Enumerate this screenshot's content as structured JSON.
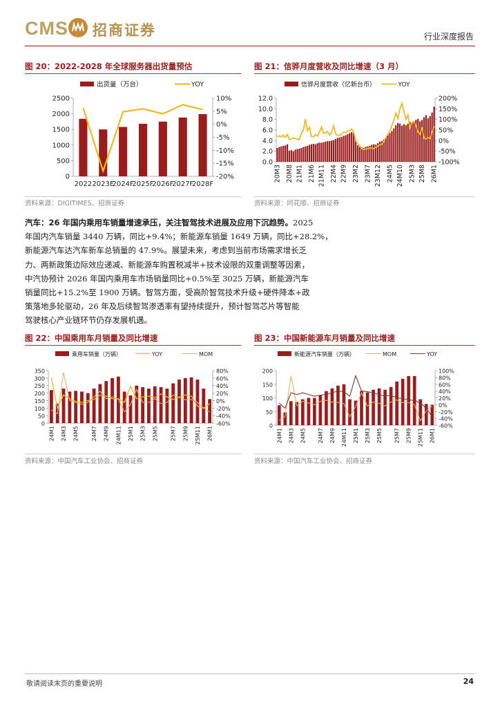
{
  "header": {
    "logo_text": "CMS",
    "logo_cn": "招商证券",
    "report_type": "行业深度报告"
  },
  "colors": {
    "bar": "#9b1c1c",
    "line_yellow": "#f2b81e",
    "line_mom": "#e8b06a",
    "line_yoy_dark": "#7a3a2a",
    "accent": "#9b1c1c"
  },
  "fig20": {
    "title": "图 20：2022-2028 年全球服务器出货量预估",
    "source": "资料来源：DIGITIMES、招商证券",
    "chart_data": {
      "type": "bar",
      "categories": [
        "2022",
        "2023E",
        "2024F",
        "2025F",
        "2026F",
        "2027F",
        "2028F"
      ],
      "series": [
        {
          "name": "出货量（万台）",
          "type": "bar",
          "axis": "left",
          "values": [
            1840,
            1500,
            1580,
            1680,
            1750,
            1880,
            1990
          ]
        },
        {
          "name": "YOY",
          "type": "line",
          "axis": "right",
          "values": [
            6.2,
            -18.0,
            4.8,
            5.9,
            4.0,
            7.5,
            5.6
          ]
        }
      ],
      "ylim_left": [
        0,
        2500
      ],
      "yticks_left": [
        "2500",
        "2000",
        "1500",
        "1000",
        "500",
        "0"
      ],
      "ylim_right": [
        -20,
        10
      ],
      "yticks_right": [
        "10%",
        "5%",
        "0%",
        "-5%",
        "-10%",
        "-15%",
        "-20%"
      ]
    }
  },
  "fig21": {
    "title": "图 21：信骅月度营收及同比增速（3 月）",
    "source": "资料来源：同花顺、招商证券",
    "chart_data": {
      "type": "bar",
      "x_ticks": [
        "20M3",
        "20M8",
        "21M1",
        "21M6",
        "21M11",
        "22M4",
        "22M9",
        "23M2",
        "23M7",
        "23M12",
        "24M5",
        "24M10",
        "25M3",
        "25M8",
        "26M1"
      ],
      "series": [
        {
          "name": "信骅月度营收（亿新台币）",
          "type": "bar",
          "axis": "left",
          "values": [
            2.6,
            2.8,
            2.9,
            3.0,
            3.1,
            3.3,
            2.1,
            2.2,
            2.0,
            2.3,
            2.4,
            2.5,
            2.6,
            2.8,
            2.9,
            3.0,
            3.2,
            3.3,
            3.4,
            3.3,
            3.5,
            3.6,
            3.6,
            3.7,
            3.8,
            3.9,
            3.9,
            4.0,
            4.1,
            4.3,
            4.5,
            4.6,
            4.7,
            4.9,
            5.0,
            5.2,
            5.4,
            5.6,
            5.4,
            4.2,
            3.1,
            2.8,
            2.7,
            2.6,
            2.8,
            2.9,
            3.0,
            3.2,
            3.3,
            3.2,
            3.5,
            3.8,
            3.9,
            4.2,
            4.6,
            5.0,
            5.4,
            5.8,
            6.3,
            6.9,
            7.3,
            7.2,
            6.8,
            7.1,
            6.9,
            7.2,
            7.5,
            7.4,
            7.7,
            7.9,
            8.1,
            7.6,
            7.9,
            8.4,
            8.8,
            8.2,
            8.6,
            9.3,
            10.4
          ]
        },
        {
          "name": "YOY",
          "type": "line",
          "axis": "right",
          "values": [
            20,
            22,
            18,
            25,
            15,
            28,
            5,
            8,
            12,
            10,
            6,
            4,
            35,
            50,
            102,
            48,
            62,
            20,
            18,
            28,
            22,
            40,
            65,
            34,
            38,
            42,
            26,
            40,
            70,
            32,
            24,
            25,
            30,
            40,
            38,
            45,
            46,
            55,
            42,
            -2,
            -15,
            -24,
            -38,
            -42,
            -40,
            -38,
            -35,
            -36,
            -38,
            -32,
            -25,
            -20,
            -18,
            -5,
            15,
            30,
            46,
            72,
            95,
            130,
            105,
            150,
            176,
            138,
            100,
            120,
            60,
            85,
            90,
            70,
            40,
            30,
            62,
            10,
            8,
            14,
            10,
            40,
            68
          ]
        }
      ],
      "ylim_left": [
        0,
        12
      ],
      "yticks_left": [
        "12.0",
        "10.0",
        "8.0",
        "6.0",
        "4.0",
        "2.0",
        "0.0"
      ],
      "ylim_right": [
        -100,
        200
      ],
      "yticks_right": [
        "200%",
        "150%",
        "100%",
        "50%",
        "0%",
        "-50%",
        "-100%"
      ]
    }
  },
  "paragraph": {
    "lead": "汽车：26 年国内乘用车销量增速承压，关注智驾技术进展及应用下沉趋势。",
    "lines": [
      "2025",
      "年国内汽车销量 3440 万辆，同比+9.4%；新能源车销量 1649 万辆，同比+28.2%，",
      "新能源汽车达汽车新车总销量的 47.9%。展望未来，考虑到当前市场需求增长乏",
      "力、两新政策边际效应递减、新能源车购置税减半+技术设限的双重调整等因素，",
      "中汽协预计 2026 年国内乘用车市场销量同比+0.5%至 3025 万辆，新能源汽车",
      "销量同比+15.2%至 1900 万辆。智驾方面，受高阶智驾技术升级+硬件降本+政",
      "策落地多轮驱动，26 年及后续智驾渗透率有望持续提升，预计智驾芯片等智能",
      "驾驶核心产业链环节仍存发展机遇。"
    ]
  },
  "fig22": {
    "title": "图 22：中国乘用车月销量及同比增速",
    "source": "资料来源：中国汽车工业协会、招商证券",
    "chart_data": {
      "type": "bar",
      "x_ticks": [
        "24M1",
        "24M3",
        "24M5",
        "24M7",
        "24M9",
        "24M11",
        "25M1",
        "25M3",
        "25M5",
        "25M7",
        "25M9",
        "25M11",
        "26M1"
      ],
      "series": [
        {
          "name": "乘用车销量（万辆）",
          "type": "bar",
          "axis": "left",
          "values": [
            220,
            130,
            230,
            210,
            215,
            210,
            200,
            230,
            260,
            280,
            300,
            310,
            210,
            185,
            250,
            240,
            230,
            245,
            240,
            230,
            265,
            290,
            300,
            305,
            290,
            230,
            160
          ]
        },
        {
          "name": "YOY",
          "type": "line",
          "axis": "right",
          "values": [
            60,
            -20,
            15,
            5,
            -2,
            -5,
            0,
            3,
            15,
            12,
            5,
            5,
            -5,
            38,
            5,
            10,
            12,
            8,
            18,
            10,
            3,
            10,
            15,
            12,
            -15,
            -20,
            -8
          ]
        },
        {
          "name": "MOM",
          "type": "line",
          "axis": "right",
          "values": [
            -25,
            -35,
            75,
            0,
            -5,
            -10,
            -5,
            10,
            25,
            5,
            10,
            3,
            -30,
            -10,
            30,
            -5,
            -5,
            5,
            -8,
            -5,
            15,
            8,
            2,
            3,
            -5,
            -20,
            -30
          ]
        }
      ],
      "ylim_left": [
        0,
        350
      ],
      "yticks_left": [
        "350",
        "300",
        "250",
        "200",
        "150",
        "100",
        "50",
        "0"
      ],
      "ylim_right": [
        -60,
        80
      ],
      "yticks_right": [
        "80%",
        "60%",
        "40%",
        "20%",
        "0%",
        "-20%",
        "-40%",
        "-60%"
      ]
    }
  },
  "fig23": {
    "title": "图 23：中国新能源车月销量及同比增速",
    "source": "资料来源：中国汽车工业协会、招商证券",
    "chart_data": {
      "type": "bar",
      "x_ticks": [
        "24M1",
        "24M3",
        "24M5",
        "24M7",
        "24M9",
        "24M11",
        "25M1",
        "25M3",
        "25M5",
        "25M7",
        "25M9",
        "25M11",
        "26M1"
      ],
      "series": [
        {
          "name": "新能源汽车销量（万辆）",
          "type": "bar",
          "axis": "left",
          "values": [
            73,
            47,
            88,
            85,
            95,
            100,
            100,
            110,
            125,
            135,
            145,
            150,
            95,
            90,
            125,
            120,
            130,
            135,
            130,
            140,
            160,
            170,
            180,
            180,
            95,
            78,
            75
          ]
        },
        {
          "name": "MOM",
          "type": "line",
          "axis": "right",
          "values": [
            -45,
            -35,
            85,
            -3,
            10,
            5,
            0,
            10,
            13,
            8,
            7,
            3,
            -35,
            -5,
            35,
            -4,
            8,
            4,
            -4,
            8,
            14,
            6,
            6,
            0,
            -47,
            -18,
            -3
          ]
        },
        {
          "name": "YOY",
          "type": "line",
          "axis": "right",
          "values": [
            5,
            -10,
            35,
            30,
            35,
            30,
            25,
            28,
            30,
            35,
            40,
            38,
            25,
            85,
            40,
            38,
            35,
            30,
            25,
            27,
            20,
            18,
            15,
            12,
            5,
            -10,
            -35
          ]
        }
      ],
      "ylim_left": [
        0,
        200
      ],
      "yticks_left": [
        "200",
        "150",
        "100",
        "50",
        "0"
      ],
      "ylim_right": [
        -60,
        100
      ],
      "yticks_right": [
        "100%",
        "80%",
        "60%",
        "40%",
        "20%",
        "0%",
        "-20%",
        "-40%",
        "-60%"
      ]
    }
  },
  "footer": {
    "disclaimer": "敬请阅读末页的重要说明",
    "page_number": "24"
  }
}
